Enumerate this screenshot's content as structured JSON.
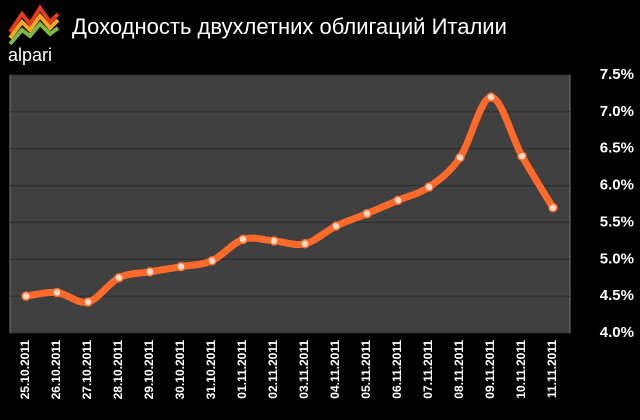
{
  "logo": "alpari",
  "chart_data": {
    "type": "line",
    "title": "Доходность двухлетних облигаций Италии",
    "categories": [
      "25.10.2011",
      "26.10.2011",
      "27.10.2011",
      "28.10.2011",
      "29.10.2011",
      "30.10.2011",
      "31.10.2011",
      "01.11.2011",
      "02.11.2011",
      "03.11.2011",
      "04.11.2011",
      "05.11.2011",
      "06.11.2011",
      "07.11.2011",
      "08.11.2011",
      "09.11.2011",
      "10.11.2011",
      "11.11.2011"
    ],
    "values": [
      4.5,
      4.55,
      4.42,
      4.75,
      4.83,
      4.9,
      4.98,
      5.27,
      5.25,
      5.21,
      5.45,
      5.62,
      5.8,
      5.98,
      6.38,
      7.2,
      6.4,
      5.7
    ],
    "color": "#ff6a2a",
    "ylim": [
      4.0,
      7.5
    ],
    "yticks": [
      {
        "value": 4.0,
        "label": "4.0%"
      },
      {
        "value": 4.5,
        "label": "4.5%"
      },
      {
        "value": 5.0,
        "label": "5.0%"
      },
      {
        "value": 5.5,
        "label": "5.5%"
      },
      {
        "value": 6.0,
        "label": "6.0%"
      },
      {
        "value": 6.5,
        "label": "6.5%"
      },
      {
        "value": 7.0,
        "label": "7.0%"
      },
      {
        "value": 7.5,
        "label": "7.5%"
      }
    ],
    "grid": true
  }
}
